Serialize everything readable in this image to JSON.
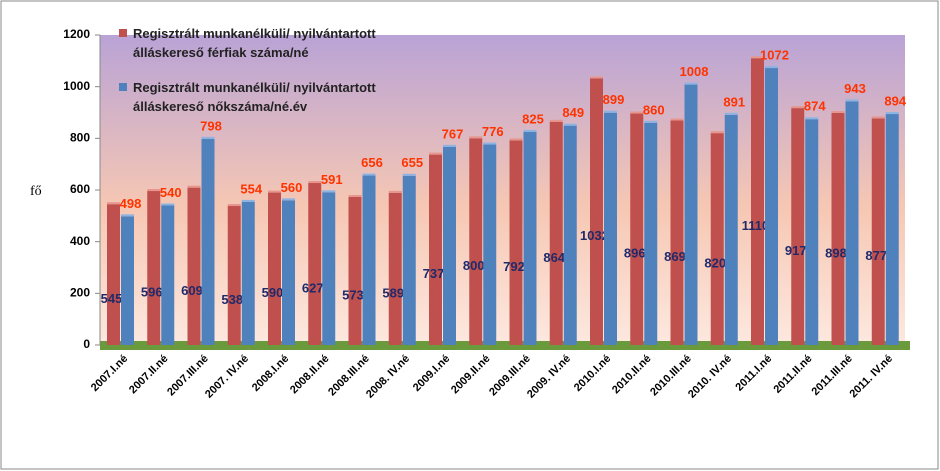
{
  "chart_data": {
    "type": "bar",
    "y_label": "fő",
    "categories": [
      "2007.I.né",
      "2007.II.né",
      "2007.III.né",
      "2007. IV.né",
      "2008.I.né",
      "2008.II.né",
      "2008.III.né",
      "2008. IV.né",
      "2009.I.né",
      "2009.II.né",
      "2009.III.né",
      "2009. IV.né",
      "2010.I.né",
      "2010.II.né",
      "2010.III.né",
      "2010. IV.né",
      "2011.I.né",
      "2011.II.né",
      "2011.III.né",
      "2011. IV.né"
    ],
    "series": [
      {
        "name": "Regisztrált munkanélküli/ nyilvántartott álláskereső férfiak száma/né",
        "color": "#c0504d",
        "label_color": "#1f2a6b",
        "values": [
          545,
          596,
          609,
          538,
          590,
          627,
          573,
          589,
          737,
          800,
          792,
          864,
          1032,
          896,
          869,
          820,
          1110,
          917,
          898,
          877
        ]
      },
      {
        "name": "Regisztrált munkanélküli/ nyilvántartott álláskereső nőkszáma/né.év",
        "color": "#4f81bd",
        "label_color": "#ff3300",
        "values": [
          498,
          540,
          798,
          554,
          560,
          591,
          656,
          655,
          767,
          776,
          825,
          849,
          899,
          860,
          1008,
          891,
          1072,
          874,
          943,
          894
        ]
      }
    ],
    "ylim": [
      0,
      1200
    ],
    "yticks": [
      0,
      200,
      400,
      600,
      800,
      1000,
      1200
    ]
  }
}
